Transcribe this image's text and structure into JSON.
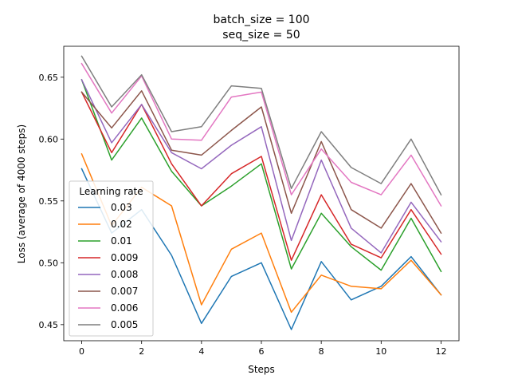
{
  "chart_data": {
    "type": "line",
    "title_lines": [
      "batch_size = 100",
      "seq_size = 50"
    ],
    "xlabel": "Steps",
    "ylabel": "Loss (average of 4000 steps)",
    "x": [
      0,
      1,
      2,
      3,
      4,
      5,
      6,
      7,
      8,
      9,
      10,
      11,
      12
    ],
    "xticks": [
      0,
      2,
      4,
      6,
      8,
      10,
      12
    ],
    "yticks": [
      0.45,
      0.5,
      0.55,
      0.6,
      0.65
    ],
    "ytick_labels": [
      "0.45",
      "0.50",
      "0.55",
      "0.60",
      "0.65"
    ],
    "xlim": [
      -0.6,
      12.6
    ],
    "ylim": [
      0.437,
      0.675
    ],
    "legend": {
      "title": "Learning rate",
      "placement": "lower-left"
    },
    "series": [
      {
        "name": "0.03",
        "color": "#1f77b4",
        "values": [
          0.576,
          0.524,
          0.543,
          0.506,
          0.451,
          0.489,
          0.5,
          0.446,
          0.501,
          0.47,
          0.481,
          0.505,
          0.474
        ]
      },
      {
        "name": "0.02",
        "color": "#ff7f0e",
        "values": [
          0.588,
          0.53,
          0.561,
          0.546,
          0.466,
          0.511,
          0.524,
          0.46,
          0.49,
          0.481,
          0.479,
          0.502,
          0.474
        ]
      },
      {
        "name": "0.01",
        "color": "#2ca02c",
        "values": [
          0.648,
          0.583,
          0.617,
          0.574,
          0.546,
          0.562,
          0.58,
          0.495,
          0.54,
          0.513,
          0.494,
          0.536,
          0.493
        ]
      },
      {
        "name": "0.009",
        "color": "#d62728",
        "values": [
          0.638,
          0.589,
          0.628,
          0.58,
          0.546,
          0.572,
          0.586,
          0.502,
          0.555,
          0.515,
          0.504,
          0.543,
          0.507
        ]
      },
      {
        "name": "0.008",
        "color": "#9467bd",
        "values": [
          0.648,
          0.597,
          0.628,
          0.589,
          0.576,
          0.595,
          0.61,
          0.518,
          0.583,
          0.528,
          0.508,
          0.549,
          0.517
        ]
      },
      {
        "name": "0.007",
        "color": "#8c564b",
        "values": [
          0.638,
          0.609,
          0.639,
          0.591,
          0.587,
          0.607,
          0.626,
          0.54,
          0.598,
          0.543,
          0.528,
          0.564,
          0.524
        ]
      },
      {
        "name": "0.006",
        "color": "#e377c2",
        "values": [
          0.661,
          0.621,
          0.651,
          0.6,
          0.599,
          0.634,
          0.638,
          0.555,
          0.592,
          0.565,
          0.555,
          0.587,
          0.546
        ]
      },
      {
        "name": "0.005",
        "color": "#7f7f7f",
        "values": [
          0.667,
          0.626,
          0.652,
          0.606,
          0.61,
          0.643,
          0.641,
          0.56,
          0.606,
          0.577,
          0.564,
          0.6,
          0.555
        ]
      }
    ]
  }
}
